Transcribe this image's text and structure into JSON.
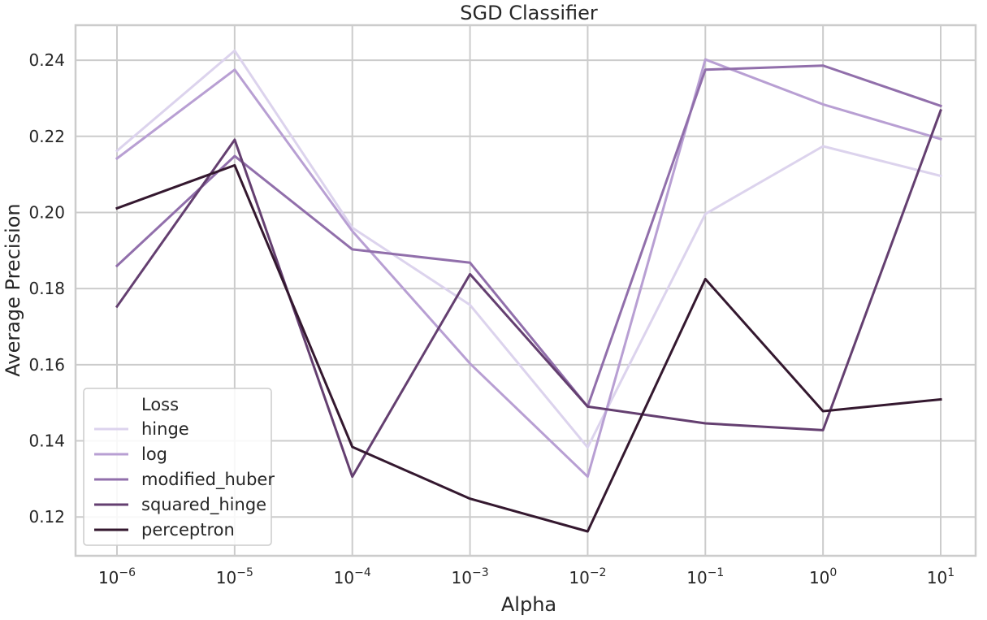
{
  "chart_data": {
    "type": "line",
    "title": "SGD Classifier",
    "xlabel": "Alpha",
    "ylabel": "Average Precision",
    "x_scale": "log",
    "x": [
      1e-06,
      1e-05,
      0.0001,
      0.001,
      0.01,
      0.1,
      1,
      10
    ],
    "x_tick_labels": [
      {
        "base": "10",
        "exp": "−6"
      },
      {
        "base": "10",
        "exp": "−5"
      },
      {
        "base": "10",
        "exp": "−4"
      },
      {
        "base": "10",
        "exp": "−3"
      },
      {
        "base": "10",
        "exp": "−2"
      },
      {
        "base": "10",
        "exp": "−1"
      },
      {
        "base": "10",
        "exp": "0"
      },
      {
        "base": "10",
        "exp": "1"
      }
    ],
    "y_ticks": [
      "0.12",
      "0.14",
      "0.16",
      "0.18",
      "0.20",
      "0.22",
      "0.24"
    ],
    "ylim": [
      0.1098,
      0.2492
    ],
    "grid": true,
    "legend": {
      "title": "Loss",
      "position": "lower-left"
    },
    "series": [
      {
        "name": "hinge",
        "color": "#dcd3ed",
        "values": [
          0.2162,
          0.2425,
          0.196,
          0.1757,
          0.1383,
          0.1996,
          0.2174,
          0.2096
        ]
      },
      {
        "name": "log",
        "color": "#b89fd3",
        "values": [
          0.2142,
          0.2375,
          0.1951,
          0.1603,
          0.1306,
          0.2402,
          0.2284,
          0.2193
        ]
      },
      {
        "name": "modified_huber",
        "color": "#916fab",
        "values": [
          0.186,
          0.2148,
          0.1903,
          0.1868,
          0.149,
          0.2375,
          0.2386,
          0.228
        ]
      },
      {
        "name": "squared_hinge",
        "color": "#643f70",
        "values": [
          0.1753,
          0.2191,
          0.1306,
          0.1838,
          0.149,
          0.1446,
          0.1428,
          0.2268
        ]
      },
      {
        "name": "perceptron",
        "color": "#34182f",
        "values": [
          0.2011,
          0.2124,
          0.1384,
          0.1248,
          0.1162,
          0.1825,
          0.1478,
          0.1509
        ]
      }
    ]
  }
}
